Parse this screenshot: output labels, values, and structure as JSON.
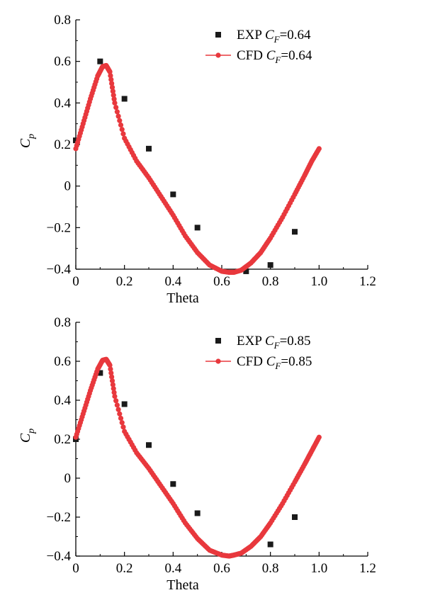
{
  "chart_data": [
    {
      "type": "scatter",
      "xlabel": "Theta",
      "ylabel": "C_p",
      "xlim": [
        0,
        1.2
      ],
      "ylim": [
        -0.4,
        0.8
      ],
      "x_ticks": [
        "0",
        "0.2",
        "0.4",
        "0.6",
        "0.8",
        "1.0",
        "1.2"
      ],
      "y_ticks": [
        "−0.4",
        "−0.2",
        "0",
        "0.2",
        "0.4",
        "0.6",
        "0.8"
      ],
      "legend_position": "top-right",
      "series": [
        {
          "name": "EXP C_F=0.64",
          "label_parts": [
            "EXP ",
            "C",
            "F",
            "=0.64"
          ],
          "marker": "square",
          "color": "#1a1a1a",
          "x": [
            0.0,
            0.1,
            0.2,
            0.3,
            0.4,
            0.5,
            0.7,
            0.8,
            0.9
          ],
          "y": [
            0.22,
            0.6,
            0.42,
            0.18,
            -0.04,
            -0.2,
            -0.41,
            -0.38,
            -0.22
          ]
        },
        {
          "name": "CFD C_F=0.64",
          "label_parts": [
            "CFD ",
            "C",
            "F",
            "=0.64"
          ],
          "marker": "line-dot",
          "color": "#e8383d",
          "x": [
            0.0,
            0.03,
            0.06,
            0.09,
            0.11,
            0.125,
            0.14,
            0.16,
            0.2,
            0.25,
            0.3,
            0.35,
            0.4,
            0.45,
            0.5,
            0.55,
            0.6,
            0.63,
            0.65,
            0.68,
            0.72,
            0.76,
            0.8,
            0.85,
            0.9,
            0.94,
            0.97,
            1.0
          ],
          "y": [
            0.18,
            0.3,
            0.42,
            0.53,
            0.575,
            0.58,
            0.55,
            0.4,
            0.23,
            0.12,
            0.04,
            -0.05,
            -0.14,
            -0.24,
            -0.32,
            -0.38,
            -0.41,
            -0.415,
            -0.415,
            -0.405,
            -0.37,
            -0.32,
            -0.25,
            -0.15,
            -0.04,
            0.05,
            0.12,
            0.18
          ]
        }
      ]
    },
    {
      "type": "scatter",
      "xlabel": "Theta",
      "ylabel": "C_p",
      "xlim": [
        0,
        1.2
      ],
      "ylim": [
        -0.4,
        0.8
      ],
      "x_ticks": [
        "0",
        "0.2",
        "0.4",
        "0.6",
        "0.8",
        "1.0",
        "1.2"
      ],
      "y_ticks": [
        "−0.4",
        "−0.2",
        "0",
        "0.2",
        "0.4",
        "0.6",
        "0.8"
      ],
      "legend_position": "top-right",
      "series": [
        {
          "name": "EXP C_F=0.85",
          "label_parts": [
            "EXP ",
            "C",
            "F",
            "=0.85"
          ],
          "marker": "square",
          "color": "#1a1a1a",
          "x": [
            0.0,
            0.1,
            0.2,
            0.3,
            0.4,
            0.5,
            0.8,
            0.9
          ],
          "y": [
            0.2,
            0.54,
            0.38,
            0.17,
            -0.03,
            -0.18,
            -0.34,
            -0.2
          ]
        },
        {
          "name": "CFD C_F=0.85",
          "label_parts": [
            "CFD ",
            "C",
            "F",
            "=0.85"
          ],
          "marker": "line-dot",
          "color": "#e8383d",
          "x": [
            0.0,
            0.03,
            0.06,
            0.09,
            0.11,
            0.125,
            0.14,
            0.16,
            0.2,
            0.25,
            0.3,
            0.35,
            0.4,
            0.45,
            0.5,
            0.55,
            0.6,
            0.63,
            0.65,
            0.68,
            0.72,
            0.76,
            0.8,
            0.85,
            0.9,
            0.94,
            0.97,
            1.0
          ],
          "y": [
            0.21,
            0.33,
            0.45,
            0.56,
            0.605,
            0.61,
            0.58,
            0.42,
            0.24,
            0.13,
            0.05,
            -0.04,
            -0.13,
            -0.23,
            -0.31,
            -0.37,
            -0.395,
            -0.4,
            -0.395,
            -0.385,
            -0.35,
            -0.3,
            -0.23,
            -0.13,
            -0.02,
            0.07,
            0.14,
            0.21
          ]
        }
      ]
    }
  ]
}
